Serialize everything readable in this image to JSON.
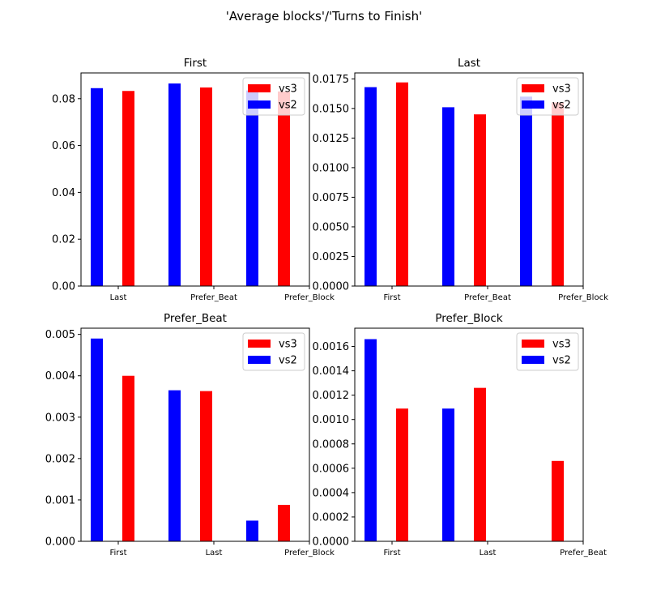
{
  "figure": {
    "title": "'Average blocks'/'Turns to Finish'"
  },
  "chart_data": [
    {
      "type": "bar",
      "title": "First",
      "categories": [
        "Last",
        "Prefer_Beat",
        "Prefer_Block"
      ],
      "series": [
        {
          "name": "vs2",
          "color": "#0000ff",
          "values": [
            0.0845,
            0.0865,
            0.0835
          ]
        },
        {
          "name": "vs3",
          "color": "#ff0000",
          "values": [
            0.0833,
            0.0848,
            0.0831
          ]
        }
      ],
      "legend_order": [
        "vs3",
        "vs2"
      ],
      "legend_position": "upper right",
      "ylim": [
        0,
        0.091
      ],
      "yticks": [
        0.0,
        0.02,
        0.04,
        0.06,
        0.08
      ],
      "ytick_labels": [
        "0.00",
        "0.02",
        "0.04",
        "0.06",
        "0.08"
      ]
    },
    {
      "type": "bar",
      "title": "Last",
      "categories": [
        "First",
        "Prefer_Beat",
        "Prefer_Block"
      ],
      "series": [
        {
          "name": "vs2",
          "color": "#0000ff",
          "values": [
            0.0168,
            0.0151,
            0.016
          ]
        },
        {
          "name": "vs3",
          "color": "#ff0000",
          "values": [
            0.0172,
            0.0145,
            0.0155
          ]
        }
      ],
      "legend_order": [
        "vs3",
        "vs2"
      ],
      "legend_position": "upper right",
      "ylim": [
        0,
        0.018
      ],
      "yticks": [
        0.0,
        0.0025,
        0.005,
        0.0075,
        0.01,
        0.0125,
        0.015,
        0.0175
      ],
      "ytick_labels": [
        "0.0000",
        "0.0025",
        "0.0050",
        "0.0075",
        "0.0100",
        "0.0125",
        "0.0150",
        "0.0175"
      ]
    },
    {
      "type": "bar",
      "title": "Prefer_Beat",
      "categories": [
        "First",
        "Last",
        "Prefer_Block"
      ],
      "series": [
        {
          "name": "vs2",
          "color": "#0000ff",
          "values": [
            0.0049,
            0.00365,
            0.0005
          ]
        },
        {
          "name": "vs3",
          "color": "#ff0000",
          "values": [
            0.004,
            0.00363,
            0.00088
          ]
        }
      ],
      "legend_order": [
        "vs3",
        "vs2"
      ],
      "legend_position": "upper right",
      "ylim": [
        0,
        0.00515
      ],
      "yticks": [
        0.0,
        0.001,
        0.002,
        0.003,
        0.004,
        0.005
      ],
      "ytick_labels": [
        "0.000",
        "0.001",
        "0.002",
        "0.003",
        "0.004",
        "0.005"
      ]
    },
    {
      "type": "bar",
      "title": "Prefer_Block",
      "categories": [
        "First",
        "Last",
        "Prefer_Beat"
      ],
      "series": [
        {
          "name": "vs2",
          "color": "#0000ff",
          "values": [
            0.00166,
            0.00109,
            0.0
          ]
        },
        {
          "name": "vs3",
          "color": "#ff0000",
          "values": [
            0.00109,
            0.00126,
            0.00066
          ]
        }
      ],
      "legend_order": [
        "vs3",
        "vs2"
      ],
      "legend_position": "upper right",
      "ylim": [
        0,
        0.00175
      ],
      "yticks": [
        0.0,
        0.0002,
        0.0004,
        0.0006,
        0.0008,
        0.001,
        0.0012,
        0.0014,
        0.0016
      ],
      "ytick_labels": [
        "0.0000",
        "0.0002",
        "0.0004",
        "0.0006",
        "0.0008",
        "0.0010",
        "0.0012",
        "0.0014",
        "0.0016"
      ]
    }
  ]
}
